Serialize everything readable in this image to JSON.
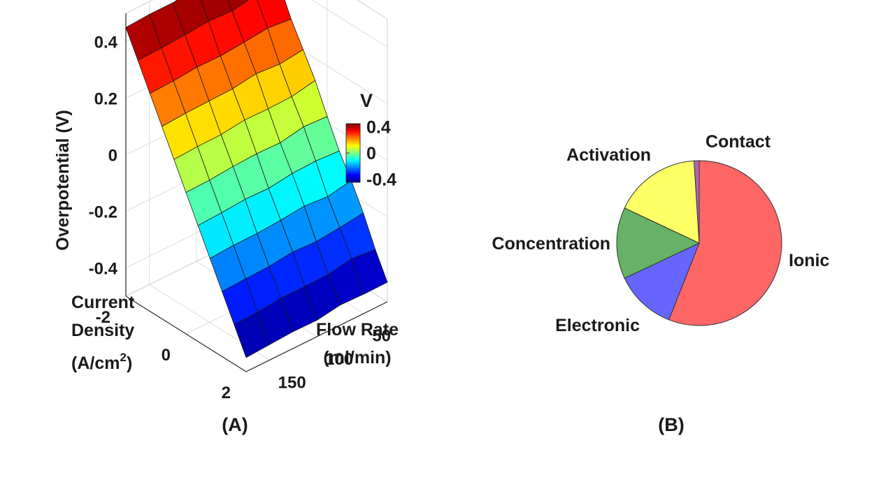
{
  "panels": {
    "a_label": "(A)",
    "b_label": "(B)"
  },
  "chart_data": [
    {
      "type": "surface3d",
      "zlabel": "Overpotential (V)",
      "xlabel_lines": [
        "Current",
        "Density",
        "(A/cm",
        "2",
        ")"
      ],
      "ylabel_lines": [
        "Flow Rate",
        "(ml/min)"
      ],
      "z_ticks": [
        "0.4",
        "0.2",
        "0",
        "-0.2",
        "-0.4"
      ],
      "z_tick_values": [
        0.4,
        0.2,
        0,
        -0.2,
        -0.4
      ],
      "x_ticks": [
        "-2",
        "0",
        "2"
      ],
      "x_tick_values": [
        -2,
        0,
        2
      ],
      "y_ticks": [
        "50",
        "100",
        "150"
      ],
      "y_tick_values": [
        50,
        100,
        150
      ],
      "xlim": [
        -2,
        2
      ],
      "ylim": [
        25,
        175
      ],
      "zlim": [
        -0.5,
        0.5
      ],
      "grid": true,
      "colormap": "jet",
      "colorbar": {
        "title": "V",
        "ticks": [
          "0.4",
          "0",
          "-0.4"
        ],
        "tick_values": [
          0.4,
          0,
          -0.4
        ],
        "range": [
          -0.45,
          0.45
        ]
      },
      "surface": {
        "current_density": [
          -2.0,
          -1.6,
          -1.2,
          -0.8,
          -0.4,
          0.0,
          0.4,
          0.8,
          1.2,
          1.6,
          2.0
        ],
        "flow_rate": [
          175,
          150,
          125,
          100,
          75,
          50,
          25
        ],
        "overpotential_extremes": [
          0.45,
          -0.45
        ]
      }
    },
    {
      "type": "pie",
      "labels": [
        "Ionic",
        "Electronic",
        "Concentration",
        "Activation",
        "Contact"
      ],
      "values": [
        56,
        12,
        14,
        17,
        1
      ],
      "colors": [
        "#ff6666",
        "#6666ff",
        "#66b266",
        "#ffff66",
        "#b266b2"
      ],
      "start_angle_deg": 90,
      "direction": "clockwise"
    }
  ]
}
